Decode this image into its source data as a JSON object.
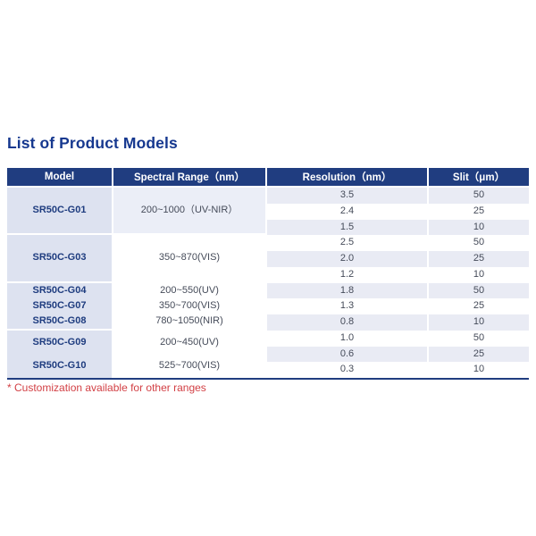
{
  "page": {
    "title": "List of Product Models",
    "footnote": "* Customization available for other ranges"
  },
  "table": {
    "columns": [
      "Model",
      "Spectral Range（nm）",
      "Resolution（nm）",
      "Slit（μm）"
    ],
    "groups": [
      {
        "models": [
          "SR50C-G01"
        ],
        "ranges": [
          "200~1000（UV-NIR）"
        ],
        "rows": [
          {
            "resolution": "3.5",
            "slit": "50"
          },
          {
            "resolution": "2.4",
            "slit": "25"
          },
          {
            "resolution": "1.5",
            "slit": "10"
          }
        ]
      },
      {
        "models": [
          "SR50C-G03"
        ],
        "ranges": [
          "350~870(VIS)"
        ],
        "rows": [
          {
            "resolution": "2.5",
            "slit": "50"
          },
          {
            "resolution": "2.0",
            "slit": "25"
          },
          {
            "resolution": "1.2",
            "slit": "10"
          }
        ]
      },
      {
        "models": [
          "SR50C-G04",
          "SR50C-G07",
          "SR50C-G08"
        ],
        "ranges": [
          "200~550(UV)",
          "350~700(VIS)",
          "780~1050(NIR)"
        ],
        "rows": [
          {
            "resolution": "1.8",
            "slit": "50"
          },
          {
            "resolution": "1.3",
            "slit": "25"
          },
          {
            "resolution": "0.8",
            "slit": "10"
          }
        ]
      },
      {
        "models": [
          "SR50C-G09",
          "SR50C-G10"
        ],
        "ranges": [
          "200~450(UV)",
          "525~700(VIS)"
        ],
        "rows": [
          {
            "resolution": "1.0",
            "slit": "50"
          },
          {
            "resolution": "0.6",
            "slit": "25"
          },
          {
            "resolution": "0.3",
            "slit": "10"
          }
        ]
      }
    ],
    "colors": {
      "title_text": "#16388f",
      "header_bg": "#203d80",
      "header_text": "#ffffff",
      "model_cell_bg": "#dde2f0",
      "model_text": "#1e3c7f",
      "stripe_bg": "#e9ebf4",
      "range_group1_bg": "#ebeef7",
      "body_text": "#454b59",
      "footnote_red": "#d23f44",
      "bottom_border": "#203d80"
    }
  }
}
